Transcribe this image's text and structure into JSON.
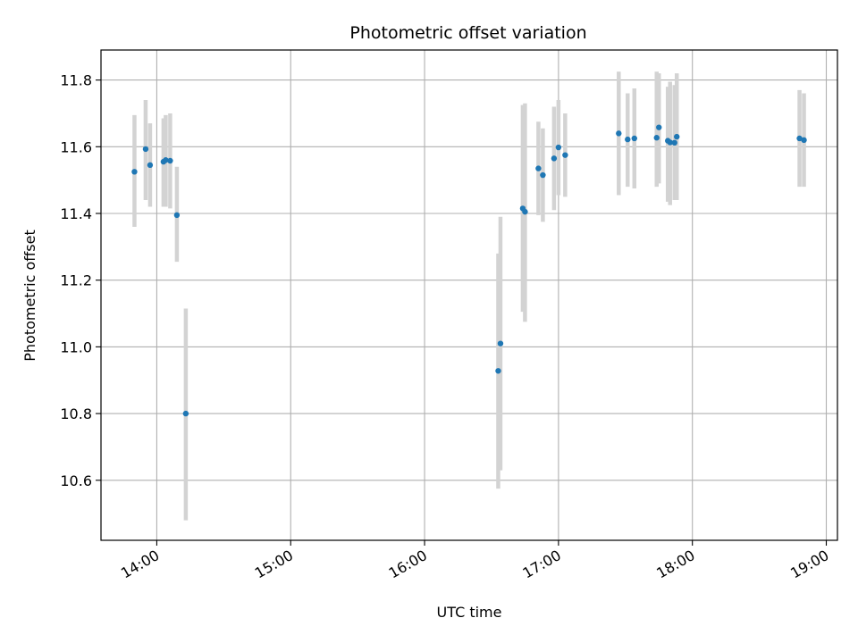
{
  "chart_data": {
    "type": "scatter",
    "title": "Photometric offset variation",
    "xlabel": "UTC time",
    "ylabel": "Photometric offset",
    "xlim": [
      "13:35",
      "19:05"
    ],
    "ylim": [
      10.42,
      11.89
    ],
    "x_ticks": [
      "14:00",
      "15:00",
      "16:00",
      "17:00",
      "18:00",
      "19:00"
    ],
    "y_ticks": [
      "10.6",
      "10.8",
      "11.0",
      "11.2",
      "11.4",
      "11.6",
      "11.8"
    ],
    "grid": true,
    "colors": {
      "point": "#1f77b4",
      "errorbar": "#d3d3d3",
      "grid": "#b0b0b0"
    },
    "points": [
      {
        "time": "13:50",
        "y": 11.525,
        "lo": 11.36,
        "hi": 11.695
      },
      {
        "time": "13:55",
        "y": 11.593,
        "lo": 11.44,
        "hi": 11.74
      },
      {
        "time": "13:57",
        "y": 11.545,
        "lo": 11.42,
        "hi": 11.67
      },
      {
        "time": "14:03",
        "y": 11.555,
        "lo": 11.42,
        "hi": 11.685
      },
      {
        "time": "14:04",
        "y": 11.56,
        "lo": 11.42,
        "hi": 11.695
      },
      {
        "time": "14:06",
        "y": 11.558,
        "lo": 11.415,
        "hi": 11.7
      },
      {
        "time": "14:09",
        "y": 11.395,
        "lo": 11.255,
        "hi": 11.54
      },
      {
        "time": "14:13",
        "y": 10.8,
        "lo": 10.48,
        "hi": 11.115
      },
      {
        "time": "16:33",
        "y": 10.928,
        "lo": 10.575,
        "hi": 11.28
      },
      {
        "time": "16:34",
        "y": 11.01,
        "lo": 10.63,
        "hi": 11.39
      },
      {
        "time": "16:44",
        "y": 11.415,
        "lo": 11.105,
        "hi": 11.725
      },
      {
        "time": "16:45",
        "y": 11.405,
        "lo": 11.075,
        "hi": 11.73
      },
      {
        "time": "16:51",
        "y": 11.535,
        "lo": 11.395,
        "hi": 11.675
      },
      {
        "time": "16:53",
        "y": 11.515,
        "lo": 11.375,
        "hi": 11.655
      },
      {
        "time": "16:58",
        "y": 11.565,
        "lo": 11.41,
        "hi": 11.72
      },
      {
        "time": "17:00",
        "y": 11.598,
        "lo": 11.455,
        "hi": 11.74
      },
      {
        "time": "17:03",
        "y": 11.575,
        "lo": 11.45,
        "hi": 11.7
      },
      {
        "time": "17:27",
        "y": 11.64,
        "lo": 11.455,
        "hi": 11.825
      },
      {
        "time": "17:31",
        "y": 11.622,
        "lo": 11.48,
        "hi": 11.76
      },
      {
        "time": "17:34",
        "y": 11.625,
        "lo": 11.475,
        "hi": 11.775
      },
      {
        "time": "17:44",
        "y": 11.627,
        "lo": 11.48,
        "hi": 11.825
      },
      {
        "time": "17:45",
        "y": 11.658,
        "lo": 11.49,
        "hi": 11.82
      },
      {
        "time": "17:49",
        "y": 11.618,
        "lo": 11.435,
        "hi": 11.78
      },
      {
        "time": "17:50",
        "y": 11.613,
        "lo": 11.425,
        "hi": 11.795
      },
      {
        "time": "17:52",
        "y": 11.612,
        "lo": 11.44,
        "hi": 11.785
      },
      {
        "time": "17:53",
        "y": 11.63,
        "lo": 11.44,
        "hi": 11.82
      },
      {
        "time": "18:48",
        "y": 11.625,
        "lo": 11.48,
        "hi": 11.77
      },
      {
        "time": "18:50",
        "y": 11.62,
        "lo": 11.48,
        "hi": 11.76
      }
    ]
  }
}
